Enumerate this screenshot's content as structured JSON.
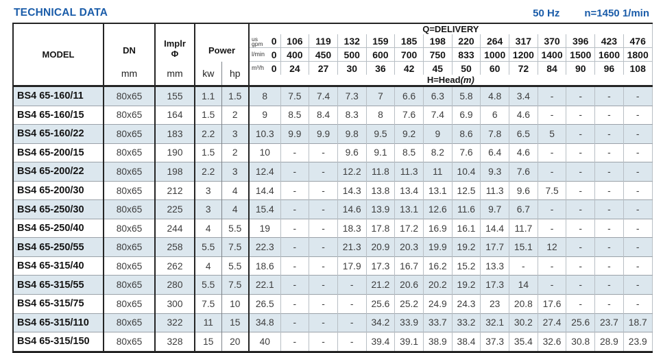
{
  "page": {
    "title": "TECHNICAL DATA",
    "frequency": "50 Hz",
    "speed": "n=1450 1/min"
  },
  "colors": {
    "accent_blue": "#1a5ca9",
    "row_shade": "#dce7ee"
  },
  "table": {
    "headers": {
      "model": "MODEL",
      "dn": "DN",
      "implr_line1": "Implr",
      "implr_line2": "Φ",
      "power": "Power",
      "dn_unit": "mm",
      "implr_unit": "mm",
      "kw": "kw",
      "hp": "hp",
      "delivery": "Q=DELIVERY",
      "head": "H=Head",
      "head_unit": "(m)",
      "unit_gpm_line1": "us",
      "unit_gpm_line2": "gpm",
      "unit_lmin": "l/min",
      "unit_m3h": "m³/h"
    },
    "delivery_gpm": [
      "0",
      "106",
      "119",
      "132",
      "159",
      "185",
      "198",
      "220",
      "264",
      "317",
      "370",
      "396",
      "423",
      "476"
    ],
    "delivery_lmin": [
      "0",
      "400",
      "450",
      "500",
      "600",
      "700",
      "750",
      "833",
      "1000",
      "1200",
      "1400",
      "1500",
      "1600",
      "1800"
    ],
    "delivery_m3h": [
      "0",
      "24",
      "27",
      "30",
      "36",
      "42",
      "45",
      "50",
      "60",
      "72",
      "84",
      "90",
      "96",
      "108"
    ],
    "rows": [
      {
        "model": "BS4 65-160/11",
        "dn": "80x65",
        "implr": "155",
        "kw": "1.1",
        "hp": "1.5",
        "head": [
          "8",
          "7.5",
          "7.4",
          "7.3",
          "7",
          "6.6",
          "6.3",
          "5.8",
          "4.8",
          "3.4",
          "-",
          "-",
          "-",
          "-"
        ]
      },
      {
        "model": "BS4 65-160/15",
        "dn": "80x65",
        "implr": "164",
        "kw": "1.5",
        "hp": "2",
        "head": [
          "9",
          "8.5",
          "8.4",
          "8.3",
          "8",
          "7.6",
          "7.4",
          "6.9",
          "6",
          "4.6",
          "-",
          "-",
          "-",
          "-"
        ]
      },
      {
        "model": "BS4 65-160/22",
        "dn": "80x65",
        "implr": "183",
        "kw": "2.2",
        "hp": "3",
        "head": [
          "10.3",
          "9.9",
          "9.9",
          "9.8",
          "9.5",
          "9.2",
          "9",
          "8.6",
          "7.8",
          "6.5",
          "5",
          "-",
          "-",
          "-"
        ]
      },
      {
        "model": "BS4 65-200/15",
        "dn": "80x65",
        "implr": "190",
        "kw": "1.5",
        "hp": "2",
        "head": [
          "10",
          "-",
          "-",
          "9.6",
          "9.1",
          "8.5",
          "8.2",
          "7.6",
          "6.4",
          "4.6",
          "-",
          "-",
          "-",
          "-"
        ]
      },
      {
        "model": "BS4 65-200/22",
        "dn": "80x65",
        "implr": "198",
        "kw": "2.2",
        "hp": "3",
        "head": [
          "12.4",
          "-",
          "-",
          "12.2",
          "11.8",
          "11.3",
          "11",
          "10.4",
          "9.3",
          "7.6",
          "-",
          "-",
          "-",
          "-"
        ]
      },
      {
        "model": "BS4 65-200/30",
        "dn": "80x65",
        "implr": "212",
        "kw": "3",
        "hp": "4",
        "head": [
          "14.4",
          "-",
          "-",
          "14.3",
          "13.8",
          "13.4",
          "13.1",
          "12.5",
          "11.3",
          "9.6",
          "7.5",
          "-",
          "-",
          "-"
        ]
      },
      {
        "model": "BS4 65-250/30",
        "dn": "80x65",
        "implr": "225",
        "kw": "3",
        "hp": "4",
        "head": [
          "15.4",
          "-",
          "-",
          "14.6",
          "13.9",
          "13.1",
          "12.6",
          "11.6",
          "9.7",
          "6.7",
          "-",
          "-",
          "-",
          "-"
        ]
      },
      {
        "model": "BS4 65-250/40",
        "dn": "80x65",
        "implr": "244",
        "kw": "4",
        "hp": "5.5",
        "head": [
          "19",
          "-",
          "-",
          "18.3",
          "17.8",
          "17.2",
          "16.9",
          "16.1",
          "14.4",
          "11.7",
          "-",
          "-",
          "-",
          "-"
        ]
      },
      {
        "model": "BS4 65-250/55",
        "dn": "80x65",
        "implr": "258",
        "kw": "5.5",
        "hp": "7.5",
        "head": [
          "22.3",
          "-",
          "-",
          "21.3",
          "20.9",
          "20.3",
          "19.9",
          "19.2",
          "17.7",
          "15.1",
          "12",
          "-",
          "-",
          "-"
        ]
      },
      {
        "model": "BS4 65-315/40",
        "dn": "80x65",
        "implr": "262",
        "kw": "4",
        "hp": "5.5",
        "head": [
          "18.6",
          "-",
          "-",
          "17.9",
          "17.3",
          "16.7",
          "16.2",
          "15.2",
          "13.3",
          "-",
          "-",
          "-",
          "-",
          "-"
        ]
      },
      {
        "model": "BS4 65-315/55",
        "dn": "80x65",
        "implr": "280",
        "kw": "5.5",
        "hp": "7.5",
        "head": [
          "22.1",
          "-",
          "-",
          "-",
          "21.2",
          "20.6",
          "20.2",
          "19.2",
          "17.3",
          "14",
          "-",
          "-",
          "-",
          "-"
        ]
      },
      {
        "model": "BS4 65-315/75",
        "dn": "80x65",
        "implr": "300",
        "kw": "7.5",
        "hp": "10",
        "head": [
          "26.5",
          "-",
          "-",
          "-",
          "25.6",
          "25.2",
          "24.9",
          "24.3",
          "23",
          "20.8",
          "17.6",
          "-",
          "-",
          "-"
        ]
      },
      {
        "model": "BS4 65-315/110",
        "dn": "80x65",
        "implr": "322",
        "kw": "11",
        "hp": "15",
        "head": [
          "34.8",
          "-",
          "-",
          "-",
          "34.2",
          "33.9",
          "33.7",
          "33.2",
          "32.1",
          "30.2",
          "27.4",
          "25.6",
          "23.7",
          "18.7"
        ]
      },
      {
        "model": "BS4 65-315/150",
        "dn": "80x65",
        "implr": "328",
        "kw": "15",
        "hp": "20",
        "head": [
          "40",
          "-",
          "-",
          "-",
          "39.4",
          "39.1",
          "38.9",
          "38.4",
          "37.3",
          "35.4",
          "32.6",
          "30.8",
          "28.9",
          "23.9"
        ]
      }
    ]
  }
}
